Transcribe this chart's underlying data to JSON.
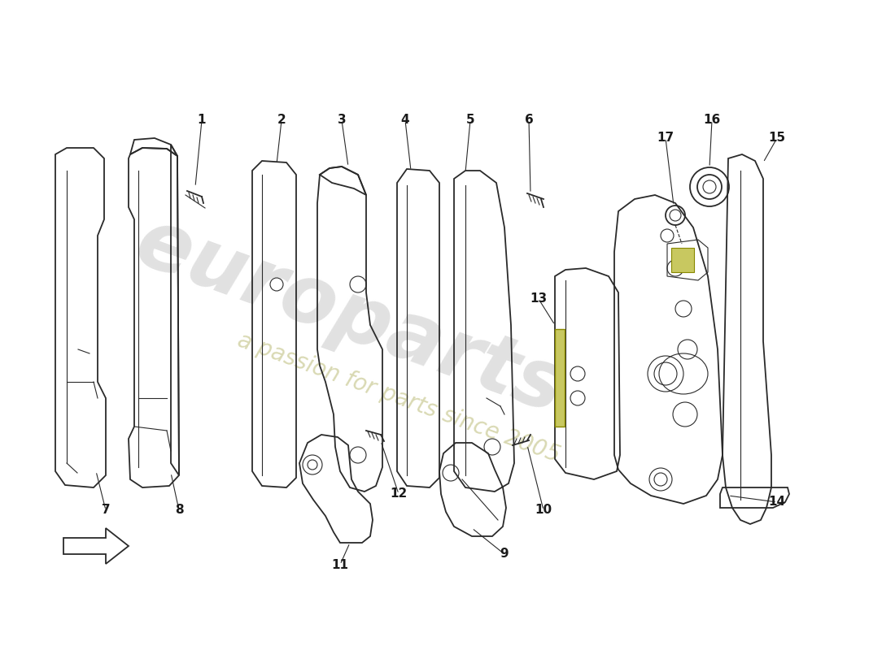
{
  "background_color": "#ffffff",
  "line_color": "#2a2a2a",
  "label_color": "#1a1a1a",
  "watermark_main": "europarts",
  "watermark_sub": "a passion for parts since 2005",
  "fig_width": 11.0,
  "fig_height": 8.0,
  "dpi": 100
}
